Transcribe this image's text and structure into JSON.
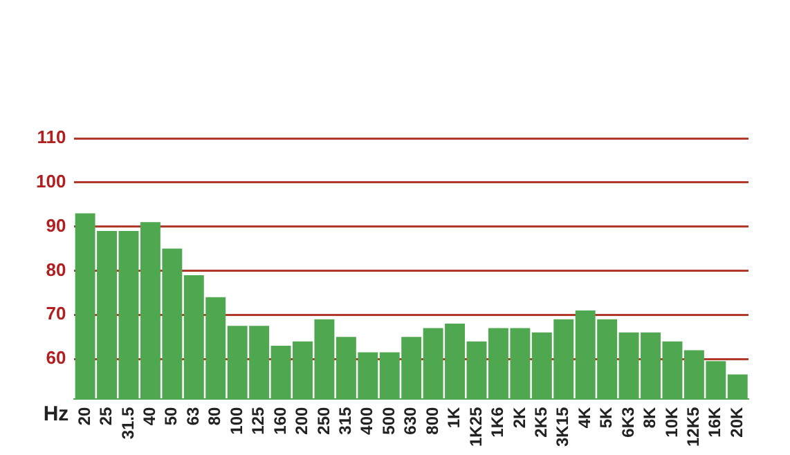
{
  "chart_data": {
    "type": "bar",
    "xlabel": "Hz",
    "categories": [
      "20",
      "25",
      "31.5",
      "40",
      "50",
      "63",
      "80",
      "100",
      "125",
      "160",
      "200",
      "250",
      "315",
      "400",
      "500",
      "630",
      "800",
      "1K",
      "1K25",
      "1K6",
      "2K",
      "2K5",
      "3K15",
      "4K",
      "5K",
      "6K3",
      "8K",
      "10K",
      "12K5",
      "16K",
      "20K"
    ],
    "values": [
      93,
      89,
      89,
      91,
      85,
      79,
      74,
      67.5,
      67.5,
      63,
      64,
      69,
      65,
      61.5,
      61.5,
      65,
      67,
      68,
      64,
      67,
      67,
      66,
      69,
      71,
      69,
      66,
      66,
      64,
      62,
      59.5,
      56.5
    ],
    "color": "#4fa84f",
    "ylim": [
      51,
      110
    ],
    "yticks": [
      60,
      70,
      80,
      90,
      100,
      110
    ],
    "grid": "y"
  }
}
